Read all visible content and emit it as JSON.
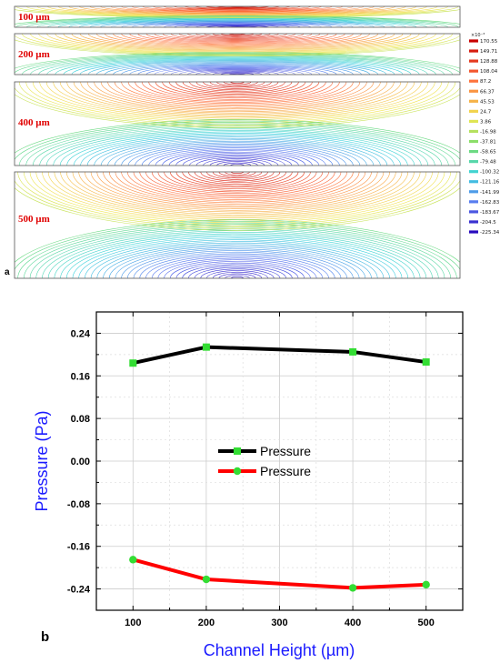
{
  "panel_a": {
    "letter": "a",
    "channel_labels": [
      "100 µm",
      "200 µm",
      "400 µm",
      "500 µm"
    ],
    "colorbar": {
      "exponent": "×10⁻³",
      "ticks": [
        "170.55",
        "149.71",
        "128.88",
        "108.04",
        "87.2",
        "66.37",
        "45.53",
        "24.7",
        "3.86",
        "-16.98",
        "-37.81",
        "-58.65",
        "-79.48",
        "-100.32",
        "-121.16",
        "-141.99",
        "-162.83",
        "-183.67",
        "-204.5",
        "-225.34"
      ]
    }
  },
  "panel_b": {
    "letter": "b"
  },
  "chart_data": {
    "type": "line",
    "x": [
      100,
      200,
      400,
      500
    ],
    "xlabel": "Channel Height (µm)",
    "ylabel": "Pressure (Pa)",
    "xlim": [
      50,
      550
    ],
    "ylim": [
      -0.28,
      0.28
    ],
    "xticks": [
      100,
      200,
      300,
      400,
      500
    ],
    "yticks": [
      0.24,
      0.16,
      0.08,
      0.0,
      -0.08,
      -0.16,
      -0.24
    ],
    "ytick_labels": [
      "0.24",
      "0.16",
      "0.08",
      "0.00",
      "-0.08",
      "-0.16",
      "-0.24"
    ],
    "grid": true,
    "legend_position": "center",
    "series": [
      {
        "name": "Pressure",
        "color": "#000000",
        "marker_color": "#33dd33",
        "values": [
          0.184,
          0.214,
          0.205,
          0.186
        ]
      },
      {
        "name": "Pressure",
        "color": "#ff0000",
        "marker_color": "#33dd33",
        "values": [
          -0.185,
          -0.222,
          -0.238,
          -0.232
        ]
      }
    ]
  }
}
